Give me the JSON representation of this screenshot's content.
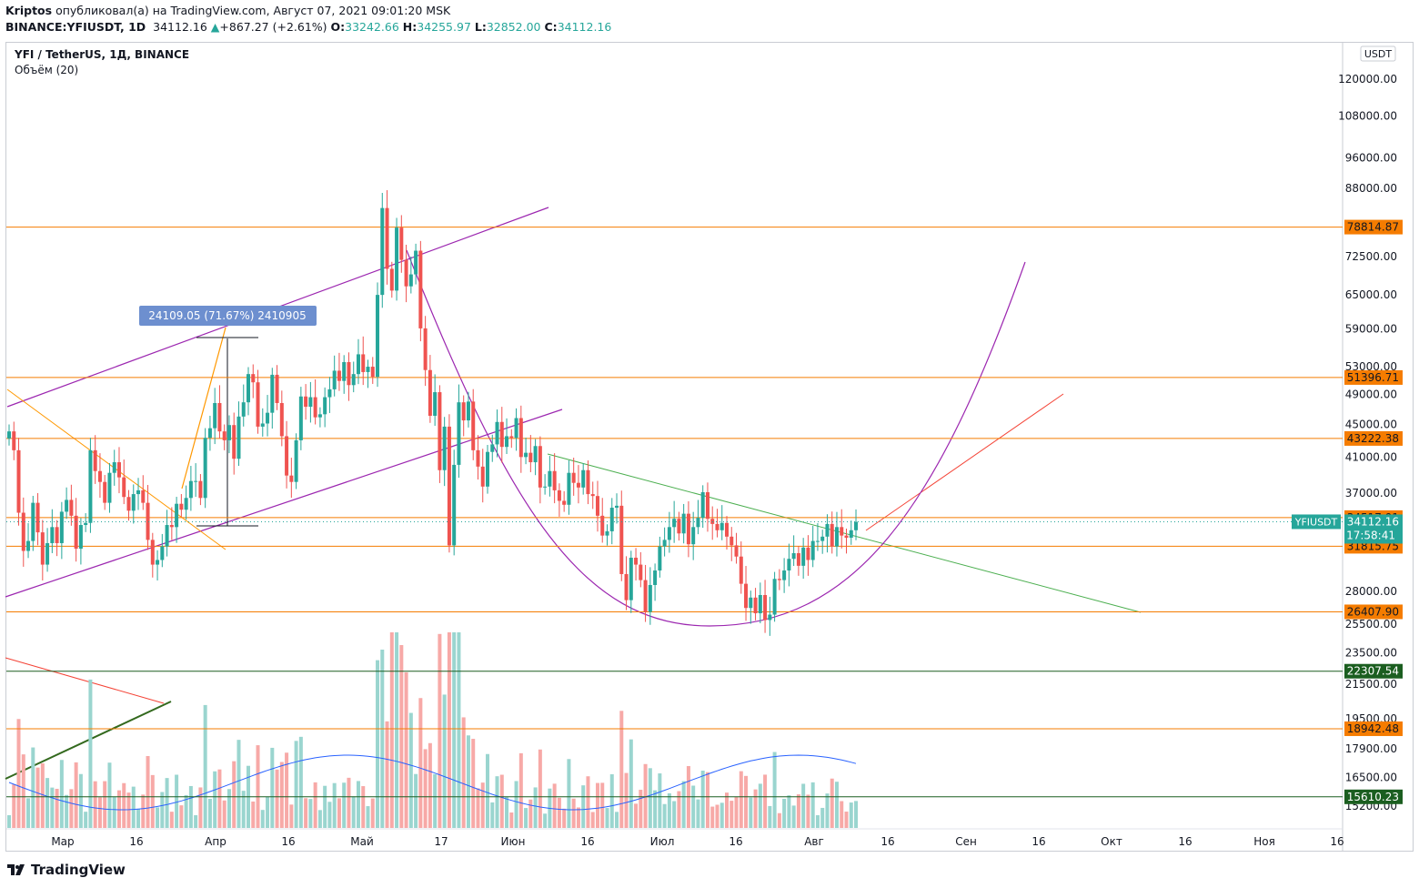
{
  "header": {
    "author": "Kriptos",
    "published": "опубликовал(а) на TradingView.com, Август 07, 2021 09:01:20 MSK",
    "symbol": "BINANCE:YFIUSDT, 1D",
    "last": "34112.16",
    "change": "+867.27 (+2.61%)",
    "o_label": "O:",
    "o": "33242.66",
    "h_label": "H:",
    "h": "34255.97",
    "l_label": "L:",
    "l": "32852.00",
    "c_label": "C:",
    "c": "34112.16"
  },
  "legend": {
    "title": "YFI / TetherUS, 1Д, BINANCE",
    "volume": "Объём (20)"
  },
  "brand": "TradingView",
  "colors": {
    "up": "#26a69a",
    "down": "#ef5350",
    "level": "#f57c00",
    "green_level": "#1b5e20",
    "purple": "#9c27b0",
    "ma": "#2962ff"
  },
  "chart_data": {
    "type": "candlestick",
    "title": "YFI / TetherUS, 1Д, BINANCE",
    "currency": "USDT",
    "scale": "log",
    "y_ticks": [
      120000,
      108000,
      96000,
      88000,
      72500,
      65000,
      59000,
      53000,
      49000,
      45000,
      41000,
      37000,
      28000,
      25500,
      23500,
      21500,
      19500,
      17900,
      16500,
      15200
    ],
    "y_tick_labels": [
      "120000.00",
      "108000.00",
      "96000.00",
      "88000.00",
      "72500.00",
      "65000.00",
      "59000.00",
      "53000.00",
      "49000.00",
      "45000.00",
      "41000.00",
      "37000.00",
      "28000.00",
      "25500.00",
      "23500.00",
      "21500.00",
      "19500.00",
      "17900.00",
      "16500.00",
      "15200.00"
    ],
    "x_labels": [
      "Мар",
      "16",
      "Апр",
      "16",
      "Май",
      "17",
      "Июн",
      "16",
      "Июл",
      "16",
      "Авг",
      "16",
      "Сен",
      "16",
      "Окт",
      "16",
      "Ноя",
      "16"
    ],
    "horizontal_levels": [
      {
        "value": 78814.87,
        "label": "78814.87",
        "color": "#f57c00"
      },
      {
        "value": 51396.71,
        "label": "51396.71",
        "color": "#f57c00"
      },
      {
        "value": 43222.38,
        "label": "43222.38",
        "color": "#f57c00"
      },
      {
        "value": 34517.91,
        "label": "34517.91",
        "color": "#f57c00"
      },
      {
        "value": 31815.75,
        "label": "31815.75",
        "color": "#f57c00"
      },
      {
        "value": 26407.9,
        "label": "26407.90",
        "color": "#f57c00"
      },
      {
        "value": 22307.54,
        "label": "22307.54",
        "color": "#1b5e20"
      },
      {
        "value": 18942.48,
        "label": "18942.48",
        "color": "#f57c00"
      },
      {
        "value": 15610.23,
        "label": "15610.23",
        "color": "#1b5e20"
      }
    ],
    "last_price": {
      "value": 34112.16,
      "label": "34112.16",
      "symbol": "YFIUSDT",
      "countdown": "17:58:41"
    },
    "measure_label": "24109.05 (71.67%) 2410905",
    "series": [
      {
        "name": "YFIUSDT",
        "close": [
          44100,
          41800,
          35000,
          31400,
          32300,
          36000,
          33100,
          30200,
          32100,
          33600,
          32100,
          35100,
          36300,
          34700,
          31600,
          33800,
          34000,
          41800,
          39400,
          38200,
          36000,
          39200,
          40400,
          38700,
          36600,
          35200,
          36900,
          37300,
          36000,
          32400,
          30200,
          30600,
          31800,
          33800,
          33600,
          35900,
          35300,
          36500,
          38300,
          38300,
          36500,
          43300,
          44500,
          47800,
          44100,
          43000,
          44900,
          40800,
          46000,
          47900,
          51900,
          50700,
          44700,
          45100,
          46500,
          51800,
          47800,
          43500,
          38900,
          38200,
          43000,
          48700,
          47300,
          48600,
          45900,
          46300,
          48600,
          49700,
          52400,
          50900,
          53700,
          50300,
          51900,
          54900,
          52200,
          53000,
          51500,
          65000,
          83200,
          70000,
          65800,
          78700,
          71800,
          66600,
          68900,
          73700,
          59100,
          52500,
          46100,
          49300,
          39500,
          44700,
          31900,
          40100,
          47900,
          45500,
          48000,
          41800,
          39900,
          37700,
          41600,
          42500,
          45300,
          42200,
          43500,
          43300,
          45800,
          41000,
          41500,
          40400,
          42300,
          37600,
          37700,
          39400,
          37300,
          36200,
          35800,
          39200,
          38100,
          37600,
          39500,
          36900,
          36700,
          34700,
          32800,
          33200,
          35500,
          35700,
          29400,
          27300,
          30800,
          30200,
          28900,
          26400,
          28500,
          29700,
          31800,
          32400,
          33600,
          34400,
          33000,
          34900,
          32000,
          33600,
          34500,
          37100,
          34400,
          33900,
          33300,
          34000,
          32700,
          31900,
          30900,
          28600,
          26700,
          27500,
          26300,
          27700,
          25800,
          26200,
          29000,
          28900,
          29700,
          30700,
          31200,
          30100,
          31700,
          30600,
          32300,
          32300,
          32700,
          33900,
          31800,
          33600,
          32800,
          32600,
          33300,
          34100
        ]
      }
    ],
    "volume_ma_period": 20
  }
}
